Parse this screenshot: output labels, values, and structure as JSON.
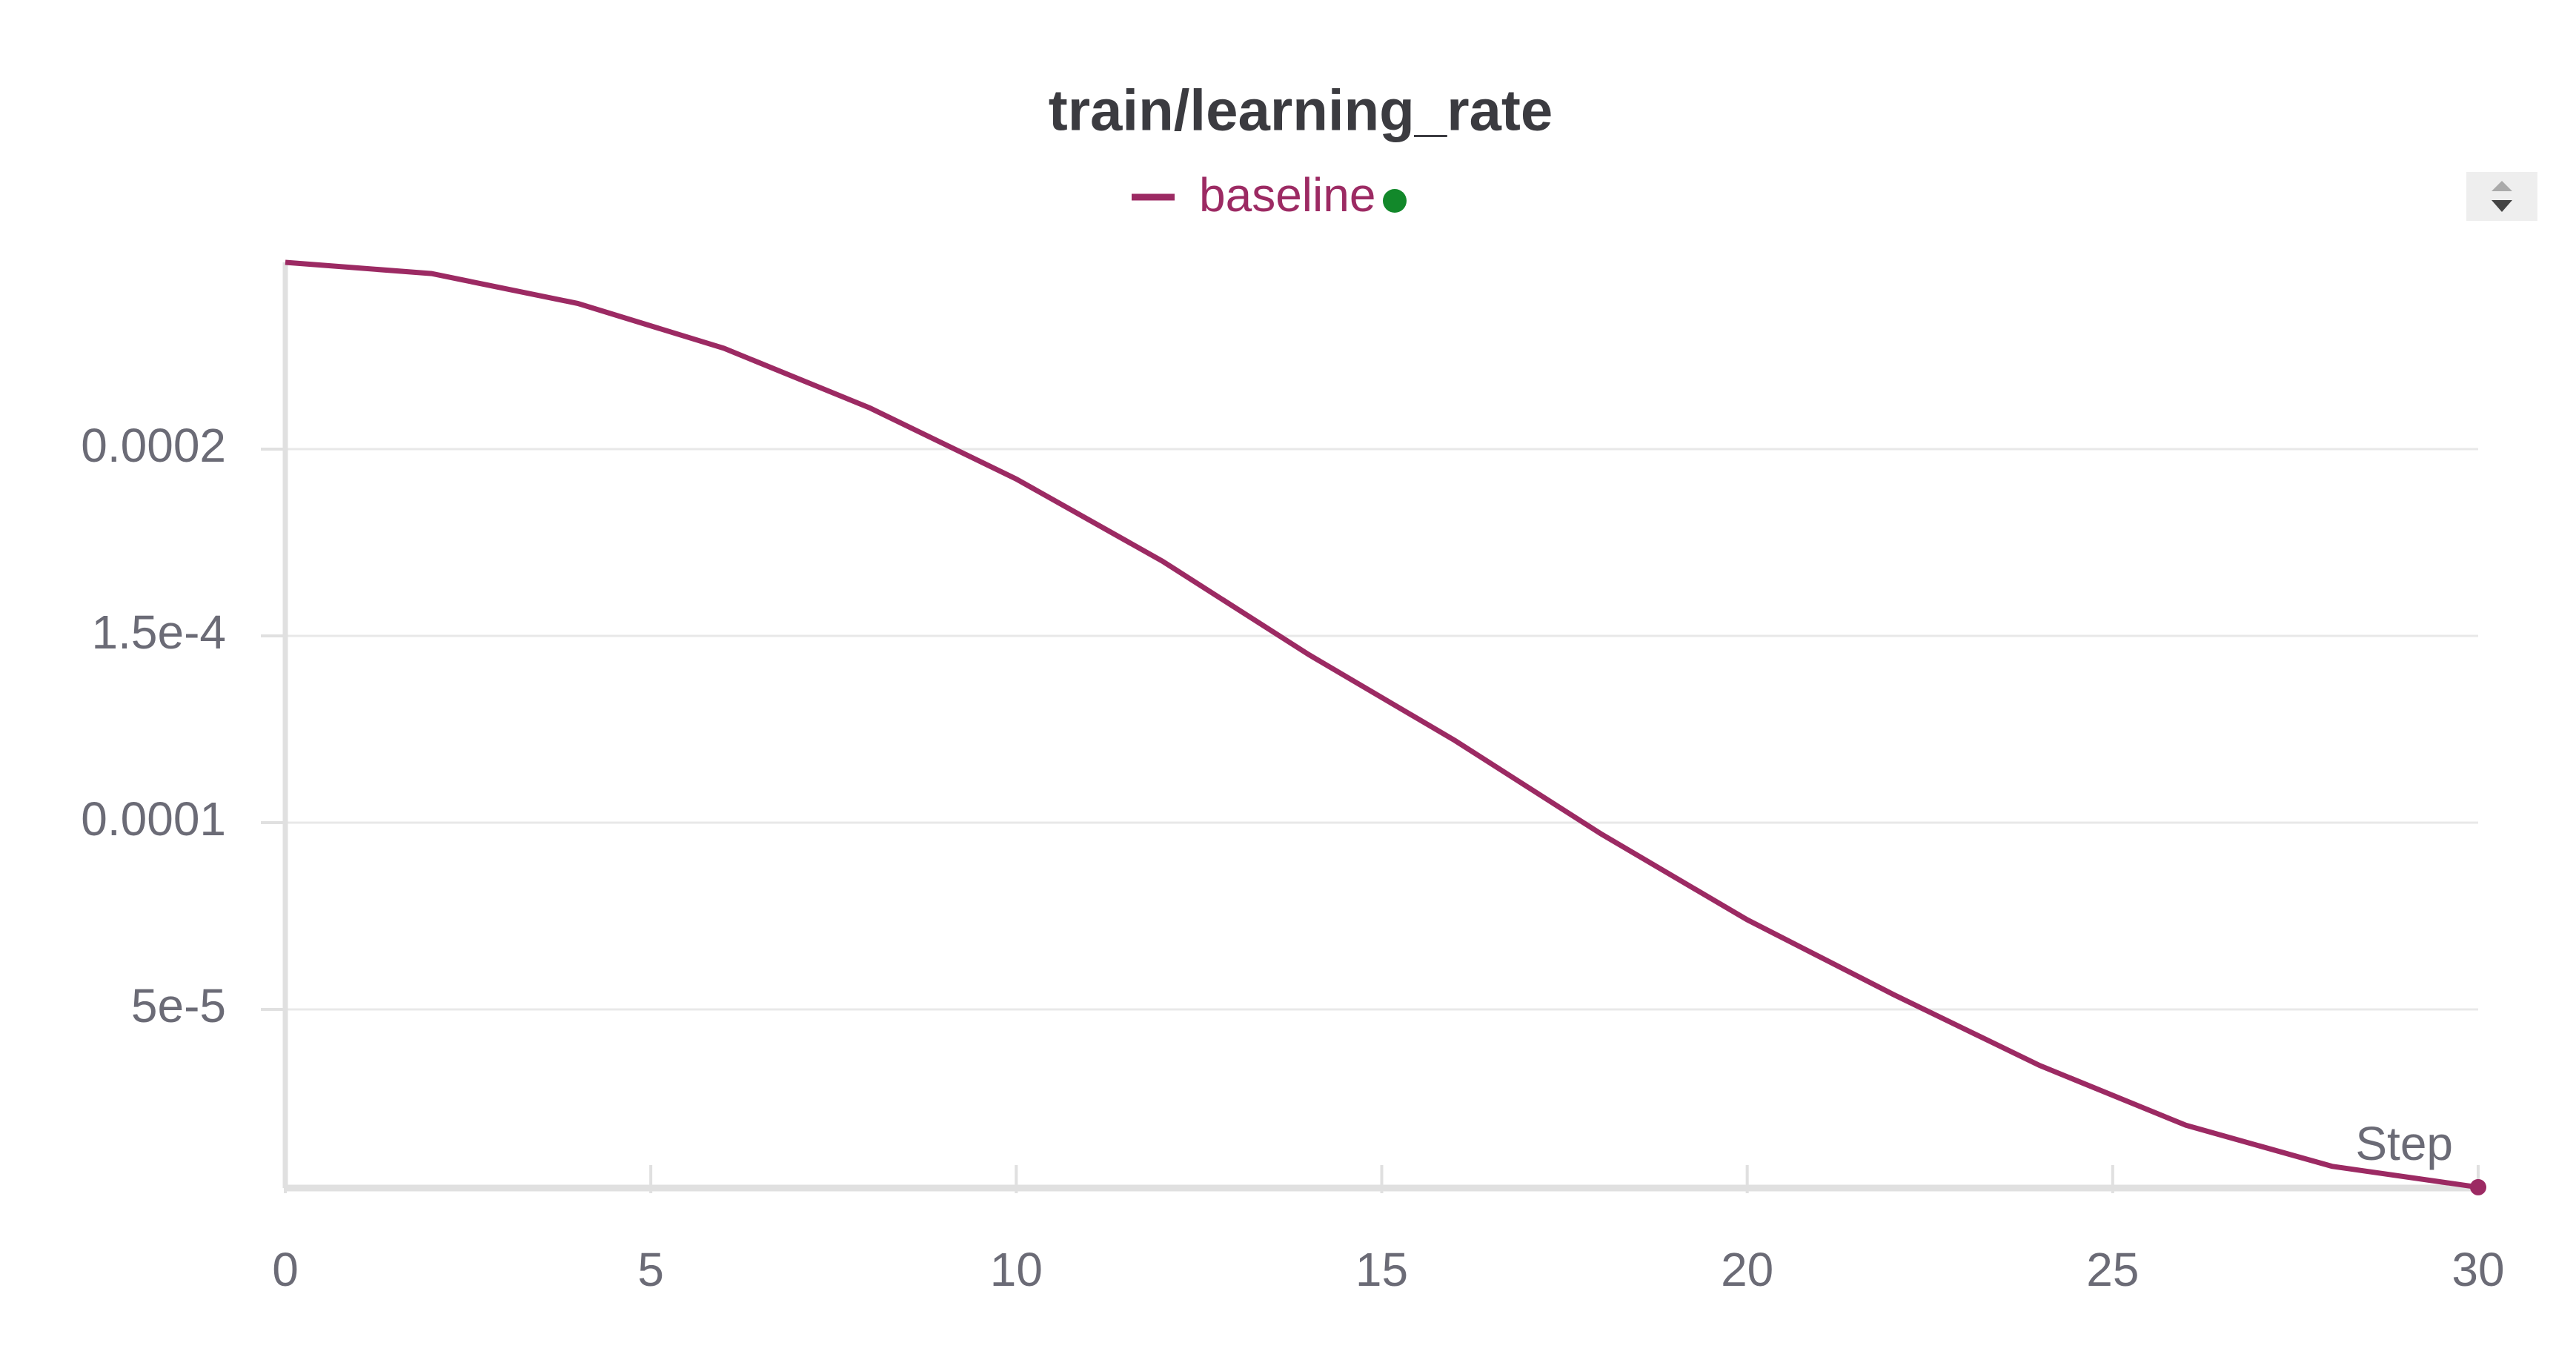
{
  "chart_data": {
    "type": "line",
    "title": "train/learning_rate",
    "x_label": "Step",
    "x": [
      0,
      2,
      4,
      6,
      8,
      10,
      12,
      14,
      16,
      18,
      20,
      22,
      24,
      26,
      28,
      30
    ],
    "series": [
      {
        "name": "baseline",
        "color": "#9c2a63",
        "values": [
          0.00025,
          0.000247,
          0.000239,
          0.000227,
          0.000211,
          0.000192,
          0.00017,
          0.000145,
          0.000122,
          9.7e-05,
          7.4e-05,
          5.4e-05,
          3.5e-05,
          1.9e-05,
          8e-06,
          2.4e-06
        ]
      }
    ],
    "xlim": [
      0,
      30
    ],
    "xticks": [
      0,
      5,
      10,
      15,
      20,
      25,
      30
    ],
    "ylim": [
      0,
      0.00025
    ],
    "yticks": [
      {
        "value": 5e-05,
        "label": "5e-5"
      },
      0.0001,
      {
        "value": 0.00015,
        "label": "1.5e-4"
      },
      0.0002
    ],
    "grid": true
  }
}
